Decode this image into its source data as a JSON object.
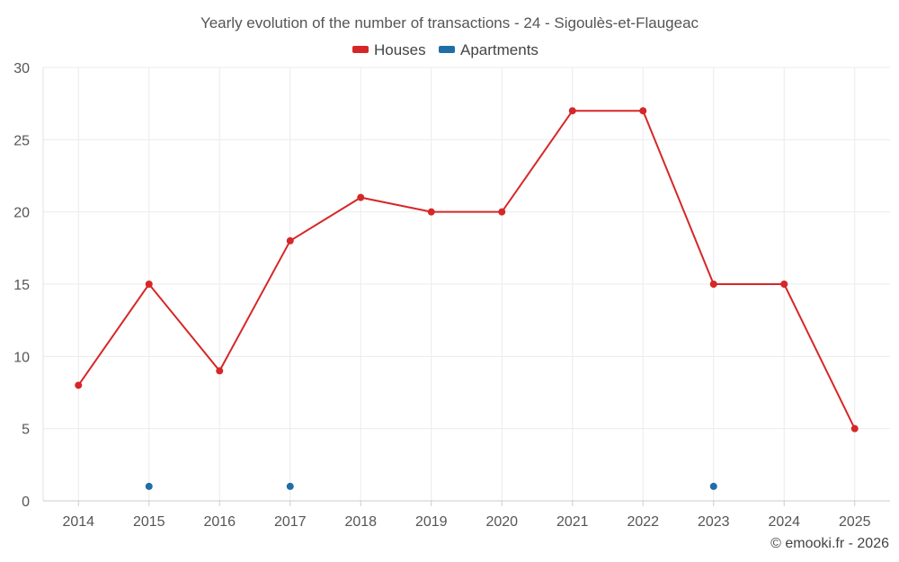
{
  "chart_data": {
    "type": "line",
    "title": "Yearly evolution of the number of transactions - 24 - Sigoulès-et-Flaugeac",
    "categories": [
      "2014",
      "2015",
      "2016",
      "2017",
      "2018",
      "2019",
      "2020",
      "2021",
      "2022",
      "2023",
      "2024",
      "2025"
    ],
    "series": [
      {
        "name": "Houses",
        "color": "#d62728",
        "values": [
          8,
          15,
          9,
          18,
          21,
          20,
          20,
          27,
          27,
          15,
          15,
          5
        ]
      },
      {
        "name": "Apartments",
        "color": "#1f6fa6",
        "values": [
          null,
          1,
          null,
          1,
          null,
          null,
          null,
          null,
          null,
          1,
          null,
          null
        ]
      }
    ],
    "ylim": [
      0,
      30
    ],
    "yticks": [
      0,
      5,
      10,
      15,
      20,
      25,
      30
    ],
    "grid": true,
    "legend": "top-center",
    "credit": "© emooki.fr - 2026"
  }
}
